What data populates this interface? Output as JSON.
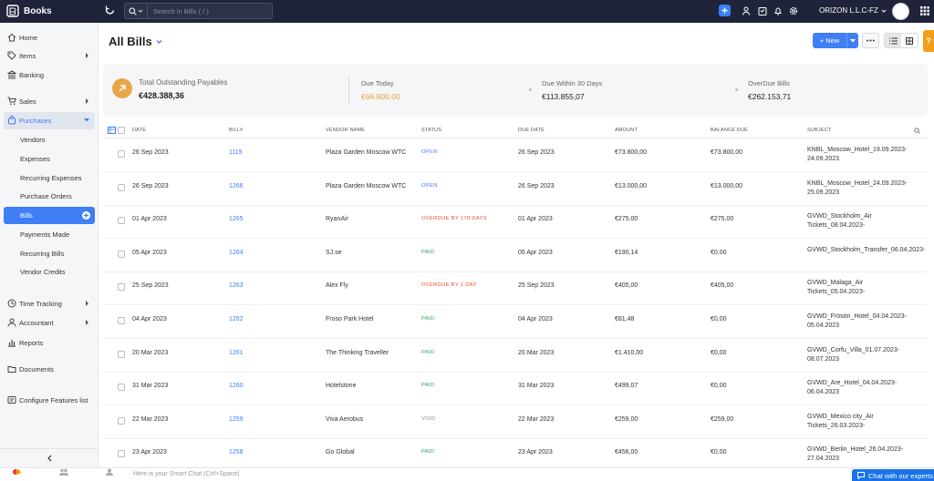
{
  "app": {
    "name": "Books"
  },
  "search": {
    "placeholder": "Search in Bills ( / )"
  },
  "org": {
    "name": "ORIZON L.L.C-FZ"
  },
  "sidebar": {
    "items": [
      {
        "label": "Home"
      },
      {
        "label": "Items"
      },
      {
        "label": "Banking"
      },
      {
        "label": "Sales"
      },
      {
        "label": "Purchases"
      },
      {
        "label": "Vendors"
      },
      {
        "label": "Expenses"
      },
      {
        "label": "Recurring Expenses"
      },
      {
        "label": "Purchase Orders"
      },
      {
        "label": "Bills"
      },
      {
        "label": "Payments Made"
      },
      {
        "label": "Recurring Bills"
      },
      {
        "label": "Vendor Credits"
      },
      {
        "label": "Time Tracking"
      },
      {
        "label": "Accountant"
      },
      {
        "label": "Reports"
      },
      {
        "label": "Documents"
      },
      {
        "label": "Configure Features list"
      }
    ]
  },
  "page": {
    "title": "All Bills",
    "new_label": "New",
    "help_label": "?"
  },
  "summary": {
    "total": {
      "label": "Total Outstanding Payables",
      "value": "€428.388,36"
    },
    "due_today": {
      "label": "Due Today",
      "value": "€66.800,00"
    },
    "due_30": {
      "label": "Due Within 30 Days",
      "value": "€113.855,07"
    },
    "overdue": {
      "label": "OverDue Bills",
      "value": "€262.153,71"
    }
  },
  "colors": {
    "open": "#3f7ef4",
    "overdue": "#e8532a",
    "paid": "#2e9e5b",
    "void": "#888888",
    "due_today": "#e8a03a"
  },
  "table": {
    "headers": {
      "date": "DATE",
      "bill": "BILL#",
      "vendor": "VENDOR NAME",
      "status": "STATUS",
      "due": "DUE DATE",
      "amount": "AMOUNT",
      "balance": "BALANCE DUE",
      "subject": "SUBJECT"
    },
    "rows": [
      {
        "date": "26 Sep 2023",
        "bill": "1119",
        "vendor": "Plaza Garden Moscow WTC",
        "status": "OPEN",
        "status_type": "open",
        "due": "26 Sep 2023",
        "amount": "€73.800,00",
        "balance": "€73.800,00",
        "subject": "KNBL_Moscow_Hotel_19.09.2023-24.09.2023"
      },
      {
        "date": "26 Sep 2023",
        "bill": "1266",
        "vendor": "Plaza Garden Moscow WTC",
        "status": "OPEN",
        "status_type": "open",
        "due": "26 Sep 2023",
        "amount": "€13.000,00",
        "balance": "€13.000,00",
        "subject": "KNBL_Moscow_Hotel_24.09.2023-25.09.2023"
      },
      {
        "date": "01 Apr 2023",
        "bill": "1265",
        "vendor": "RyanAir",
        "status": "OVERDUE BY 178 DAYS",
        "status_type": "overdue",
        "due": "01 Apr 2023",
        "amount": "€275,00",
        "balance": "€275,00",
        "subject": "GVWD_Stockholm_Air Tickets_08.04.2023-"
      },
      {
        "date": "05 Apr 2023",
        "bill": "1264",
        "vendor": "SJ.se",
        "status": "PAID",
        "status_type": "paid",
        "due": "05 Apr 2023",
        "amount": "€190,14",
        "balance": "€0,00",
        "subject": "GVWD_Stockholm_Transfer_06.04.2023-"
      },
      {
        "date": "25 Sep 2023",
        "bill": "1263",
        "vendor": "Alex Fly",
        "status": "OVERDUE BY 1 DAY",
        "status_type": "overdue",
        "due": "25 Sep 2023",
        "amount": "€405,00",
        "balance": "€405,00",
        "subject": "GVWD_Malaga_Air Tickets_05.04.2023-"
      },
      {
        "date": "04 Apr 2023",
        "bill": "1262",
        "vendor": "Froso Park Hotel",
        "status": "PAID",
        "status_type": "paid",
        "due": "04 Apr 2023",
        "amount": "€81,48",
        "balance": "€0,00",
        "subject": "GVWD_Frösön_Hotel_04.04.2023-05.04.2023"
      },
      {
        "date": "20 Mar 2023",
        "bill": "1261",
        "vendor": "The Thinking Traveller",
        "status": "PAID",
        "status_type": "paid",
        "due": "20 Mar 2023",
        "amount": "€1.410,00",
        "balance": "€0,00",
        "subject": "GVWD_Corfu_Villa_01.07.2023-08.07.2023"
      },
      {
        "date": "31 Mar 2023",
        "bill": "1260",
        "vendor": "Hotelstone",
        "status": "PAID",
        "status_type": "paid",
        "due": "31 Mar 2023",
        "amount": "€499,07",
        "balance": "€0,00",
        "subject": "GVWD_Are_Hotel_04.04.2023-06.04.2023"
      },
      {
        "date": "22 Mar 2023",
        "bill": "1259",
        "vendor": "Viva Aerobus",
        "status": "VOID",
        "status_type": "void",
        "due": "22 Mar 2023",
        "amount": "€259,00",
        "balance": "€259,00",
        "subject": "GVWD_Mexico city_Air Tickets_26.03.2023-"
      },
      {
        "date": "23 Apr 2023",
        "bill": "1258",
        "vendor": "Go Global",
        "status": "PAID",
        "status_type": "paid",
        "due": "23 Apr 2023",
        "amount": "€456,00",
        "balance": "€0,00",
        "subject": "GVWD_Berlin_Hotel_26.04.2023-27.04.2023"
      }
    ]
  },
  "bottom": {
    "chat_placeholder": "Here is your Smart Chat (Ctrl+Space)",
    "expert_label": "Chat with our experts"
  }
}
